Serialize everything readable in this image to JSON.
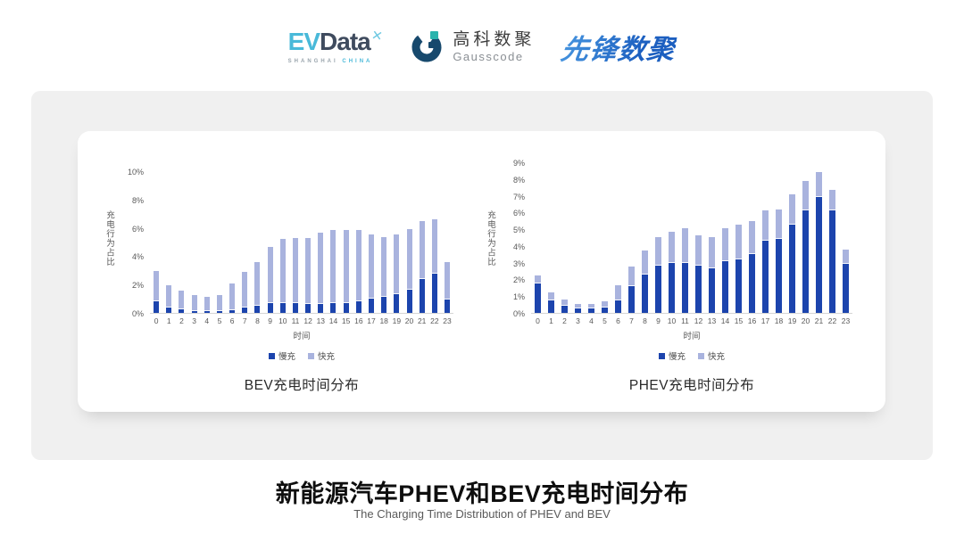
{
  "header": {
    "evdata": {
      "ev": "EV",
      "data": "Data",
      "mark": "✕",
      "sub_left": "SHANGHAI",
      "sub_right": "CHINA"
    },
    "gausscode": {
      "cn": "高科数聚",
      "en": "Gausscode"
    },
    "xianfeng": {
      "text": "先锋数聚"
    }
  },
  "colors": {
    "slow_charge": "#1c44ad",
    "fast_charge": "#a9b3de",
    "panel_gray": "#f0f0f0",
    "axis_text": "#595959"
  },
  "chart_data": [
    {
      "type": "bar",
      "stacked": true,
      "title": "BEV充电时间分布",
      "xlabel": "时间",
      "ylabel": "充电行为占比",
      "x": [
        "0",
        "1",
        "2",
        "3",
        "4",
        "5",
        "6",
        "7",
        "8",
        "9",
        "10",
        "11",
        "12",
        "13",
        "14",
        "15",
        "16",
        "17",
        "18",
        "19",
        "20",
        "21",
        "22",
        "23"
      ],
      "series": [
        {
          "name": "慢充",
          "color": "#1c44ad",
          "values": [
            0.8,
            0.4,
            0.25,
            0.15,
            0.1,
            0.15,
            0.2,
            0.4,
            0.5,
            0.7,
            0.7,
            0.7,
            0.65,
            0.65,
            0.7,
            0.7,
            0.8,
            1.0,
            1.15,
            1.3,
            1.65,
            2.4,
            2.75,
            0.95
          ]
        },
        {
          "name": "快充",
          "color": "#a9b3de",
          "values": [
            2.1,
            1.5,
            1.25,
            1.05,
            1.0,
            1.05,
            1.8,
            2.4,
            3.05,
            3.9,
            4.45,
            4.5,
            4.55,
            4.95,
            5.1,
            5.1,
            5.0,
            4.45,
            4.15,
            4.2,
            4.2,
            4.0,
            3.8,
            2.6
          ]
        }
      ],
      "ylim": [
        0,
        10
      ],
      "ytick_step": 2,
      "ytick_suffix": "%",
      "grid": false,
      "legend_position": "bottom"
    },
    {
      "type": "bar",
      "stacked": true,
      "title": "PHEV充电时间分布",
      "xlabel": "时间",
      "ylabel": "充电行为占比",
      "x": [
        "0",
        "1",
        "2",
        "3",
        "4",
        "5",
        "6",
        "7",
        "8",
        "9",
        "10",
        "11",
        "12",
        "13",
        "14",
        "15",
        "16",
        "17",
        "18",
        "19",
        "20",
        "21",
        "22",
        "23"
      ],
      "series": [
        {
          "name": "慢充",
          "color": "#1c44ad",
          "values": [
            1.75,
            0.75,
            0.45,
            0.25,
            0.25,
            0.3,
            0.75,
            1.6,
            2.3,
            2.8,
            3.0,
            3.0,
            2.8,
            2.65,
            3.1,
            3.2,
            3.5,
            4.3,
            4.4,
            5.25,
            6.1,
            6.9,
            6.1,
            2.95
          ]
        },
        {
          "name": "快充",
          "color": "#a9b3de",
          "values": [
            0.45,
            0.4,
            0.3,
            0.25,
            0.25,
            0.35,
            0.85,
            1.1,
            1.35,
            1.7,
            1.8,
            2.0,
            1.8,
            1.8,
            1.9,
            2.0,
            1.95,
            1.75,
            1.7,
            1.8,
            1.75,
            1.45,
            1.2,
            0.8
          ]
        }
      ],
      "ylim": [
        0,
        9
      ],
      "ytick_step": 1,
      "ytick_suffix": "%",
      "grid": false,
      "legend_position": "bottom"
    }
  ],
  "footer": {
    "title": "新能源汽车PHEV和BEV充电时间分布",
    "subtitle": "The Charging Time Distribution of PHEV and BEV"
  }
}
